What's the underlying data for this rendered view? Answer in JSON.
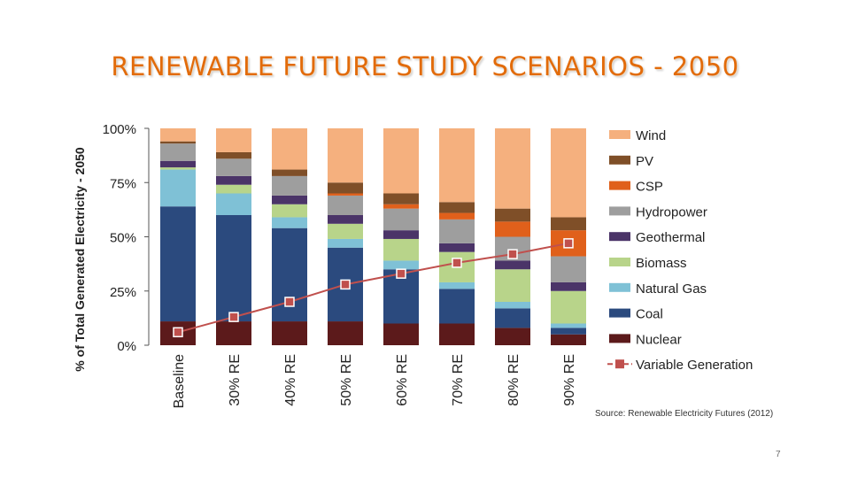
{
  "slide": {
    "title": "RENEWABLE FUTURE STUDY SCENARIOS - 2050",
    "page_number": "7"
  },
  "chart_data": {
    "type": "bar",
    "stacked": true,
    "ylabel": "% of Total Generated Electricity - 2050",
    "ylim": [
      0,
      100
    ],
    "yticks": [
      "0%",
      "25%",
      "50%",
      "75%",
      "100%"
    ],
    "categories": [
      "Baseline",
      "30% RE",
      "40% RE",
      "50% RE",
      "60% RE",
      "70% RE",
      "80% RE",
      "90% RE"
    ],
    "series": [
      {
        "name": "Nuclear",
        "color": "#5c1a1b",
        "values": [
          11,
          11,
          11,
          11,
          10,
          10,
          8,
          5
        ]
      },
      {
        "name": "Coal",
        "color": "#2b4a7e",
        "values": [
          53,
          49,
          43,
          34,
          25,
          16,
          9,
          3
        ]
      },
      {
        "name": "Natural Gas",
        "color": "#7fc1d6",
        "values": [
          17,
          10,
          5,
          4,
          4,
          3,
          3,
          2
        ]
      },
      {
        "name": "Biomass",
        "color": "#b8d48a",
        "values": [
          1,
          4,
          6,
          7,
          10,
          14,
          15,
          15
        ]
      },
      {
        "name": "Geothermal",
        "color": "#4b3468",
        "values": [
          3,
          4,
          4,
          4,
          4,
          4,
          4,
          4
        ]
      },
      {
        "name": "Hydropower",
        "color": "#9e9e9e",
        "values": [
          8,
          8,
          9,
          9,
          10,
          11,
          11,
          12
        ]
      },
      {
        "name": "CSP",
        "color": "#e0601b",
        "values": [
          0,
          0,
          0,
          1,
          2,
          3,
          7,
          12
        ]
      },
      {
        "name": "PV",
        "color": "#7f4f28",
        "values": [
          1,
          3,
          3,
          5,
          5,
          5,
          6,
          6
        ]
      },
      {
        "name": "Wind",
        "color": "#f5b07e",
        "values": [
          6,
          11,
          19,
          25,
          30,
          34,
          37,
          41
        ]
      }
    ],
    "line_series": {
      "name": "Variable Generation",
      "color": "#c0504d",
      "values": [
        6,
        13,
        20,
        28,
        33,
        38,
        42,
        47
      ]
    },
    "legend_position": "right",
    "legend_order": [
      "Wind",
      "PV",
      "CSP",
      "Hydropower",
      "Geothermal",
      "Biomass",
      "Natural Gas",
      "Coal",
      "Nuclear",
      "Variable Generation"
    ],
    "source": "Source: Renewable Electricity Futures (2012)",
    "grid": false
  }
}
